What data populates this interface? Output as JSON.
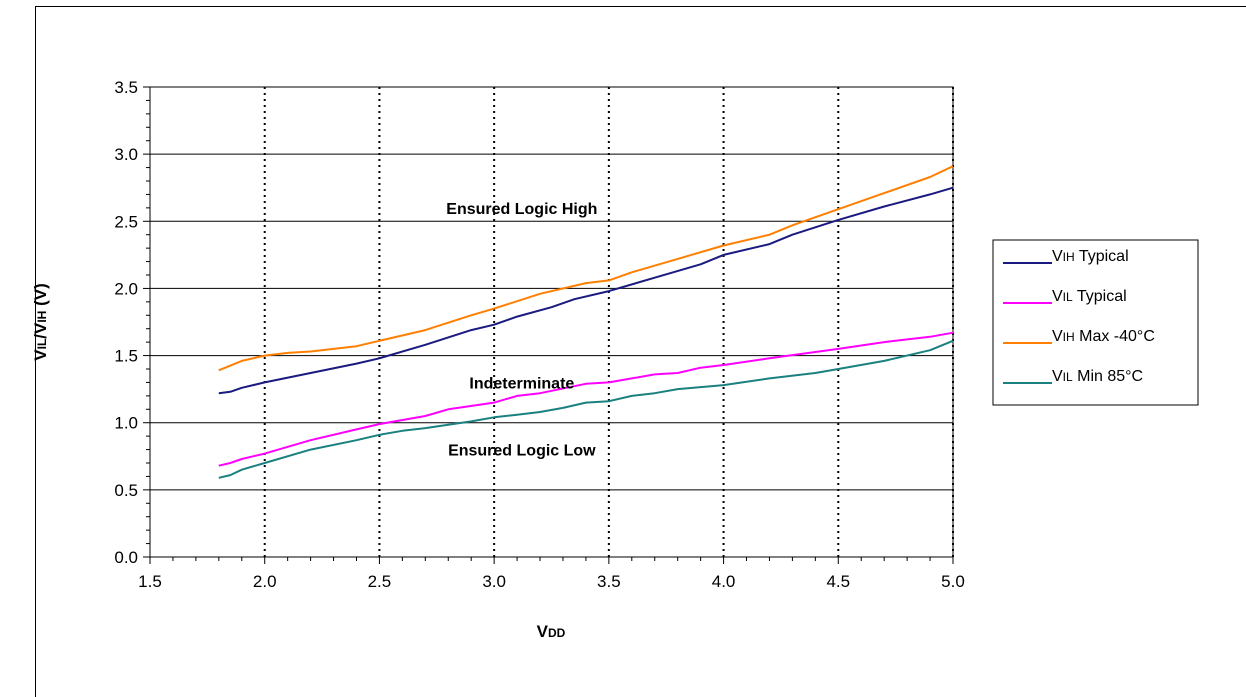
{
  "chart_data": {
    "type": "line",
    "title": "",
    "xlabel": {
      "main": "V",
      "sub": "DD"
    },
    "ylabel": {
      "p1": "V",
      "s1": "IL",
      "p2": "/V",
      "s2": "IH",
      "p3": " (V)"
    },
    "xlim": [
      1.5,
      5.0
    ],
    "ylim": [
      0.0,
      3.5
    ],
    "x_ticks": [
      "1.5",
      "2.0",
      "2.5",
      "3.0",
      "3.5",
      "4.0",
      "4.5",
      "5.0"
    ],
    "y_ticks": [
      "0.0",
      "0.5",
      "1.0",
      "1.5",
      "2.0",
      "2.5",
      "3.0",
      "3.5"
    ],
    "grid": {
      "horizontal": "solid",
      "vertical": "dotted"
    },
    "legend_position": "right",
    "annotations": [
      {
        "text": "Ensured Logic High",
        "x": 3.5,
        "y": 2.6
      },
      {
        "text": "Indeterminate",
        "x": 3.5,
        "y": 1.3
      },
      {
        "text": "Ensured Logic Low",
        "x": 3.5,
        "y": 0.8
      }
    ],
    "series": [
      {
        "name": {
          "prefix": "V",
          "sub": "IH",
          "suffix": " Typical"
        },
        "color": "#1a1a80",
        "points": [
          [
            1.8,
            1.22
          ],
          [
            1.85,
            1.23
          ],
          [
            1.9,
            1.26
          ],
          [
            2.0,
            1.3
          ],
          [
            2.2,
            1.37
          ],
          [
            2.4,
            1.44
          ],
          [
            2.5,
            1.48
          ],
          [
            2.7,
            1.58
          ],
          [
            2.9,
            1.69
          ],
          [
            3.0,
            1.73
          ],
          [
            3.1,
            1.79
          ],
          [
            3.25,
            1.86
          ],
          [
            3.35,
            1.92
          ],
          [
            3.5,
            1.98
          ],
          [
            3.7,
            2.08
          ],
          [
            3.9,
            2.18
          ],
          [
            4.0,
            2.25
          ],
          [
            4.2,
            2.33
          ],
          [
            4.3,
            2.4
          ],
          [
            4.5,
            2.51
          ],
          [
            4.7,
            2.61
          ],
          [
            4.9,
            2.7
          ],
          [
            5.0,
            2.75
          ]
        ]
      },
      {
        "name": {
          "prefix": "V",
          "sub": "IL",
          "suffix": " Typical"
        },
        "color": "#ff00ff",
        "points": [
          [
            1.8,
            0.68
          ],
          [
            1.85,
            0.7
          ],
          [
            1.9,
            0.73
          ],
          [
            2.0,
            0.77
          ],
          [
            2.2,
            0.87
          ],
          [
            2.4,
            0.95
          ],
          [
            2.5,
            0.99
          ],
          [
            2.7,
            1.05
          ],
          [
            2.8,
            1.1
          ],
          [
            3.0,
            1.15
          ],
          [
            3.1,
            1.2
          ],
          [
            3.2,
            1.22
          ],
          [
            3.4,
            1.29
          ],
          [
            3.5,
            1.3
          ],
          [
            3.7,
            1.36
          ],
          [
            3.8,
            1.37
          ],
          [
            3.9,
            1.41
          ],
          [
            4.0,
            1.43
          ],
          [
            4.2,
            1.48
          ],
          [
            4.5,
            1.55
          ],
          [
            4.7,
            1.6
          ],
          [
            4.9,
            1.64
          ],
          [
            5.0,
            1.67
          ]
        ]
      },
      {
        "name": {
          "prefix": "V",
          "sub": "IH",
          "suffix": " Max -40°C"
        },
        "color": "#ff7f00",
        "points": [
          [
            1.8,
            1.39
          ],
          [
            1.9,
            1.46
          ],
          [
            2.0,
            1.5
          ],
          [
            2.1,
            1.52
          ],
          [
            2.2,
            1.53
          ],
          [
            2.4,
            1.57
          ],
          [
            2.5,
            1.61
          ],
          [
            2.7,
            1.69
          ],
          [
            2.9,
            1.8
          ],
          [
            3.0,
            1.85
          ],
          [
            3.2,
            1.96
          ],
          [
            3.4,
            2.04
          ],
          [
            3.5,
            2.06
          ],
          [
            3.6,
            2.12
          ],
          [
            3.8,
            2.22
          ],
          [
            4.0,
            2.32
          ],
          [
            4.2,
            2.4
          ],
          [
            4.3,
            2.47
          ],
          [
            4.5,
            2.59
          ],
          [
            4.7,
            2.71
          ],
          [
            4.9,
            2.83
          ],
          [
            5.0,
            2.91
          ]
        ]
      },
      {
        "name": {
          "prefix": "V",
          "sub": "IL",
          "suffix": " Min 85°C"
        },
        "color": "#1a8080",
        "points": [
          [
            1.8,
            0.59
          ],
          [
            1.85,
            0.61
          ],
          [
            1.9,
            0.65
          ],
          [
            2.0,
            0.7
          ],
          [
            2.2,
            0.8
          ],
          [
            2.4,
            0.87
          ],
          [
            2.5,
            0.91
          ],
          [
            2.6,
            0.94
          ],
          [
            2.7,
            0.96
          ],
          [
            2.9,
            1.01
          ],
          [
            3.0,
            1.04
          ],
          [
            3.1,
            1.06
          ],
          [
            3.2,
            1.08
          ],
          [
            3.3,
            1.11
          ],
          [
            3.4,
            1.15
          ],
          [
            3.5,
            1.16
          ],
          [
            3.6,
            1.2
          ],
          [
            3.7,
            1.22
          ],
          [
            3.8,
            1.25
          ],
          [
            4.0,
            1.28
          ],
          [
            4.2,
            1.33
          ],
          [
            4.4,
            1.37
          ],
          [
            4.5,
            1.4
          ],
          [
            4.7,
            1.46
          ],
          [
            4.9,
            1.54
          ],
          [
            5.0,
            1.61
          ]
        ]
      }
    ]
  }
}
